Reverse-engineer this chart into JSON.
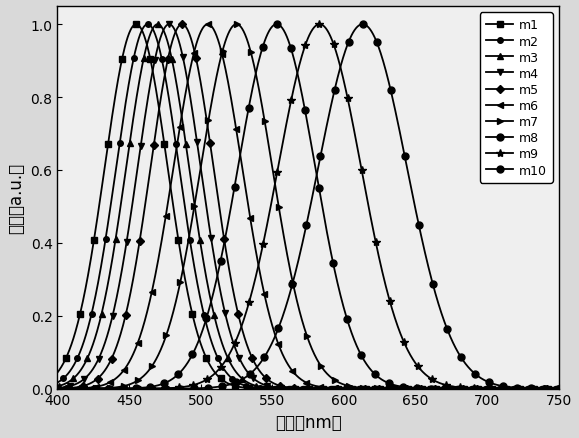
{
  "series": [
    {
      "label": "m1",
      "peak": 455,
      "sigma": 22,
      "marker": "s",
      "ms": 4
    },
    {
      "label": "m2",
      "peak": 463,
      "sigma": 22,
      "marker": "o",
      "ms": 4
    },
    {
      "label": "m3",
      "peak": 470,
      "sigma": 22,
      "marker": "^",
      "ms": 4
    },
    {
      "label": "m4",
      "peak": 478,
      "sigma": 22,
      "marker": "v",
      "ms": 4
    },
    {
      "label": "m5",
      "peak": 487,
      "sigma": 22,
      "marker": "D",
      "ms": 4
    },
    {
      "label": "m6",
      "peak": 505,
      "sigma": 24,
      "marker": "<",
      "ms": 4
    },
    {
      "label": "m7",
      "peak": 525,
      "sigma": 25,
      "marker": ">",
      "ms": 4
    },
    {
      "label": "m8",
      "peak": 553,
      "sigma": 27,
      "marker": "o",
      "ms": 5
    },
    {
      "label": "m9",
      "peak": 583,
      "sigma": 29,
      "marker": "*",
      "ms": 6
    },
    {
      "label": "m10",
      "peak": 613,
      "sigma": 31,
      "marker": "o",
      "ms": 5
    }
  ],
  "color": "black",
  "xmin": 400,
  "xmax": 750,
  "ymin": 0.0,
  "ymax": 1.05,
  "yticks": [
    0.0,
    0.2,
    0.4,
    0.6,
    0.8,
    1.0
  ],
  "xticks": [
    400,
    450,
    500,
    550,
    600,
    650,
    700,
    750
  ],
  "xlabel": "波长（nm）",
  "ylabel": "强度（a.u.）",
  "background_color": "#d9d9d9",
  "plot_bg_color": "#efefef",
  "linewidth": 1.3,
  "markevery_nm": 10,
  "npoints": 1000
}
